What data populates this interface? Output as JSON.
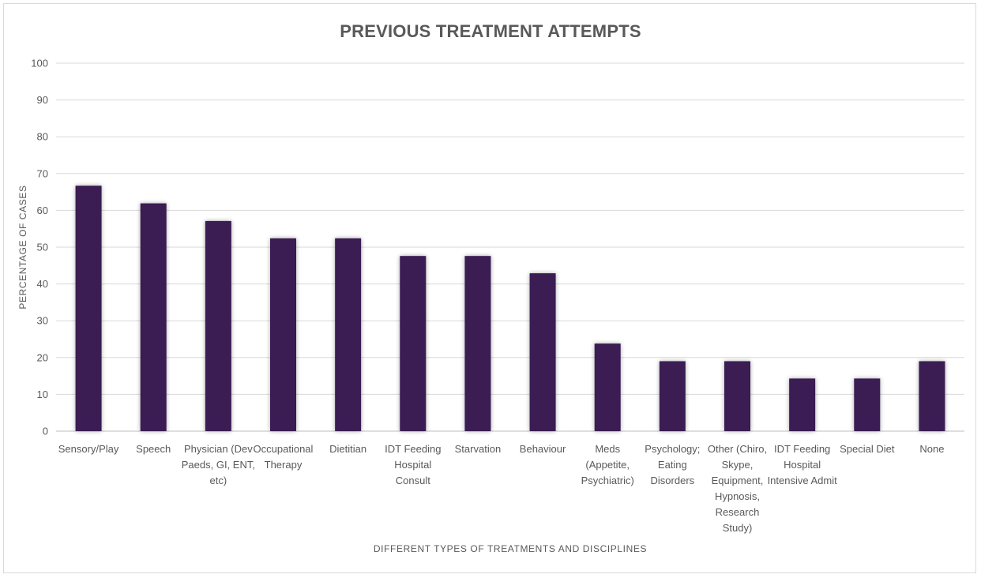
{
  "chart_data": {
    "type": "bar",
    "title": "PREVIOUS TREATMENT ATTEMPTS",
    "xlabel": "DIFFERENT TYPES OF TREATMENTS AND DISCIPLINES",
    "ylabel": "PERCENTAGE OF CASES",
    "ylim": [
      0,
      100
    ],
    "yticks": [
      0,
      10,
      20,
      30,
      40,
      50,
      60,
      70,
      80,
      90,
      100
    ],
    "grid": true,
    "bar_color": "#3b1c52",
    "categories": [
      [
        "Sensory/Play"
      ],
      [
        "Speech"
      ],
      [
        "Physician (Dev",
        "Paeds, GI, ENT,",
        "etc)"
      ],
      [
        "Occupational",
        "Therapy"
      ],
      [
        "Dietitian"
      ],
      [
        "IDT Feeding",
        "Hospital",
        "Consult"
      ],
      [
        "Starvation"
      ],
      [
        "Behaviour"
      ],
      [
        "Meds",
        "(Appetite,",
        "Psychiatric)"
      ],
      [
        "Psychology;",
        "Eating",
        "Disorders"
      ],
      [
        "Other (Chiro,",
        "Skype,",
        "Equipment,",
        "Hypnosis,",
        "Research",
        "Study)"
      ],
      [
        "IDT Feeding",
        "Hospital",
        "Intensive Admit"
      ],
      [
        "Special Diet"
      ],
      [
        "None"
      ]
    ],
    "values": [
      66.7,
      61.9,
      57.1,
      52.4,
      52.4,
      47.6,
      47.6,
      42.9,
      23.8,
      19.0,
      19.0,
      14.3,
      14.3,
      19.0
    ]
  }
}
